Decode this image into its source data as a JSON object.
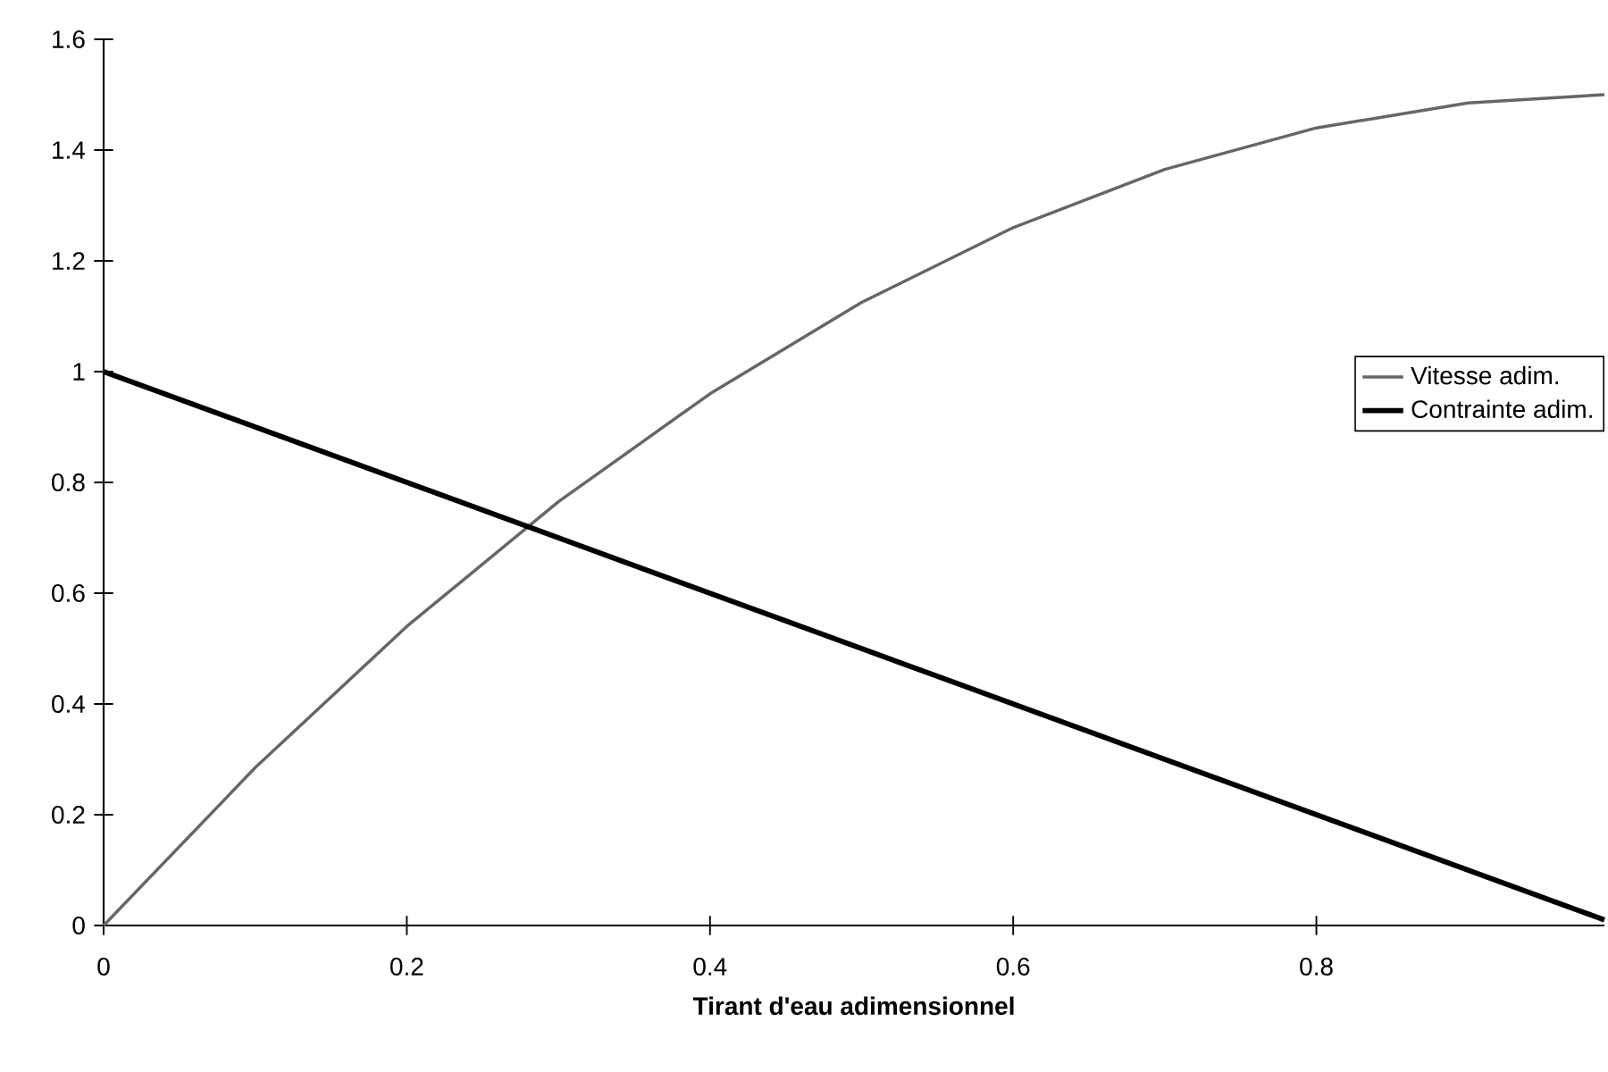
{
  "chart_data": {
    "type": "line",
    "xlabel": "Tirant d'eau adimensionnel",
    "x": [
      0,
      0.1,
      0.2,
      0.3,
      0.4,
      0.5,
      0.6,
      0.7,
      0.8,
      0.9,
      0.99
    ],
    "series": [
      {
        "name": "Vitesse adim.",
        "color": "#666666",
        "values": [
          0,
          0.285,
          0.54,
          0.765,
          0.96,
          1.125,
          1.26,
          1.365,
          1.44,
          1.485,
          1.5
        ]
      },
      {
        "name": "Contrainte adim.",
        "color": "#000000",
        "values": [
          1,
          0.9,
          0.8,
          0.7,
          0.6,
          0.5,
          0.4,
          0.3,
          0.2,
          0.1,
          0.01
        ]
      }
    ],
    "xlim": [
      0,
      0.99
    ],
    "ylim": [
      0,
      1.6
    ],
    "xticks": [
      0,
      0.2,
      0.4,
      0.6,
      0.8
    ],
    "yticks": [
      0,
      0.2,
      0.4,
      0.6,
      0.8,
      1,
      1.2,
      1.4,
      1.6
    ],
    "legend": "right"
  }
}
